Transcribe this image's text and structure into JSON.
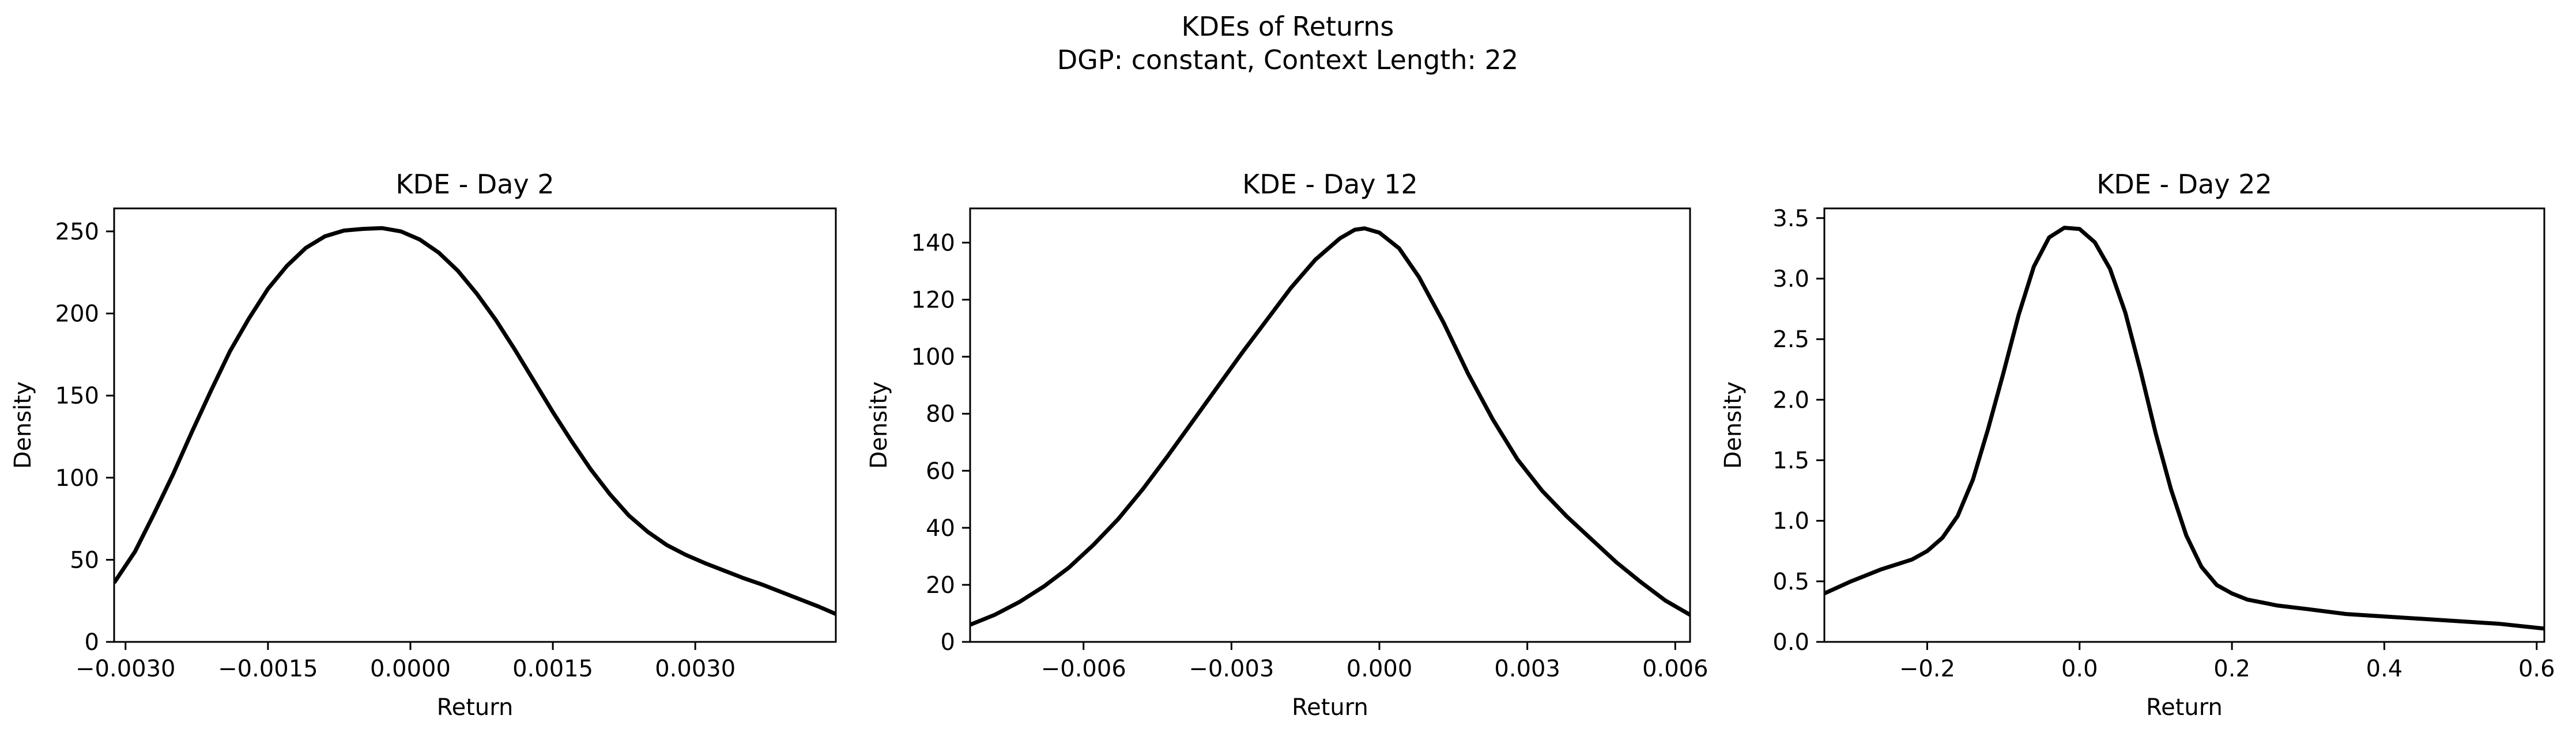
{
  "figure": {
    "suptitle_line1": "KDEs of Returns",
    "suptitle_line2": "DGP: constant, Context Length: 22",
    "line_color": "#000000"
  },
  "chart_data": [
    {
      "type": "line",
      "title": "KDE - Day 2",
      "xlabel": "Return",
      "ylabel": "Density",
      "xlim": [
        -0.00312,
        0.00448
      ],
      "ylim": [
        0,
        264
      ],
      "x_ticks": [
        -0.003,
        -0.0015,
        0.0,
        0.0015,
        0.003
      ],
      "x_tick_labels": [
        "−0.0030",
        "−0.0015",
        "0.0000",
        "0.0015",
        "0.0030"
      ],
      "y_ticks": [
        0,
        50,
        100,
        150,
        200,
        250
      ],
      "y_tick_labels": [
        "0",
        "50",
        "100",
        "150",
        "200",
        "250"
      ],
      "series": [
        {
          "x": [
            -0.00312,
            -0.0029,
            -0.0027,
            -0.0025,
            -0.0023,
            -0.0021,
            -0.0019,
            -0.0017,
            -0.0015,
            -0.0013,
            -0.0011,
            -0.0009,
            -0.0007,
            -0.0005,
            -0.0003,
            -0.0001,
            0.0001,
            0.0003,
            0.0005,
            0.0007,
            0.0009,
            0.0011,
            0.0013,
            0.0015,
            0.0017,
            0.0019,
            0.0021,
            0.0023,
            0.0025,
            0.0027,
            0.0029,
            0.0031,
            0.0033,
            0.0035,
            0.0037,
            0.0039,
            0.0041,
            0.0043,
            0.00448
          ],
          "y": [
            36,
            55,
            78,
            102,
            128,
            153,
            177,
            197,
            215,
            229,
            240,
            247,
            250.5,
            251.5,
            252,
            250,
            245,
            237,
            226,
            212,
            196,
            178,
            159,
            140,
            122,
            105,
            90,
            77,
            67,
            59,
            53,
            48,
            43.5,
            39,
            35,
            30.5,
            26,
            21.5,
            17
          ]
        }
      ]
    },
    {
      "type": "line",
      "title": "KDE - Day 12",
      "xlabel": "Return",
      "ylabel": "Density",
      "xlim": [
        -0.0083,
        0.0063
      ],
      "ylim": [
        0,
        152
      ],
      "x_ticks": [
        -0.006,
        -0.003,
        0.0,
        0.003,
        0.006
      ],
      "x_tick_labels": [
        "−0.006",
        "−0.003",
        "0.000",
        "0.003",
        "0.006"
      ],
      "y_ticks": [
        0,
        20,
        40,
        60,
        80,
        100,
        120,
        140
      ],
      "y_tick_labels": [
        "0",
        "20",
        "40",
        "60",
        "80",
        "100",
        "120",
        "140"
      ],
      "series": [
        {
          "x": [
            -0.0083,
            -0.0078,
            -0.0073,
            -0.0068,
            -0.0063,
            -0.0058,
            -0.0053,
            -0.0048,
            -0.0043,
            -0.0038,
            -0.0033,
            -0.0028,
            -0.0023,
            -0.0018,
            -0.0013,
            -0.0008,
            -0.0005,
            -0.0003,
            0.0,
            0.0004,
            0.0008,
            0.0013,
            0.0018,
            0.0023,
            0.0028,
            0.0033,
            0.0038,
            0.0043,
            0.0048,
            0.0053,
            0.0058,
            0.0063
          ],
          "y": [
            6,
            9.5,
            14,
            19.5,
            26,
            34,
            43,
            53.5,
            65,
            77,
            89,
            101,
            112.5,
            124,
            134,
            141.5,
            144.5,
            145,
            143.5,
            138,
            128,
            112,
            94,
            78,
            64,
            53,
            44,
            36,
            28,
            21,
            14.5,
            9.5
          ]
        }
      ]
    },
    {
      "type": "line",
      "title": "KDE - Day 22",
      "xlabel": "Return",
      "ylabel": "Density",
      "xlim": [
        -0.335,
        0.61
      ],
      "ylim": [
        0,
        3.58
      ],
      "x_ticks": [
        -0.2,
        0.0,
        0.2,
        0.4,
        0.6
      ],
      "x_tick_labels": [
        "−0.2",
        "0.0",
        "0.2",
        "0.4",
        "0.6"
      ],
      "y_ticks": [
        0.0,
        0.5,
        1.0,
        1.5,
        2.0,
        2.5,
        3.0,
        3.5
      ],
      "y_tick_labels": [
        "0.0",
        "0.5",
        "1.0",
        "1.5",
        "2.0",
        "2.5",
        "3.0",
        "3.5"
      ],
      "series": [
        {
          "x": [
            -0.335,
            -0.3,
            -0.26,
            -0.22,
            -0.2,
            -0.18,
            -0.16,
            -0.14,
            -0.12,
            -0.1,
            -0.08,
            -0.06,
            -0.04,
            -0.02,
            0.0,
            0.02,
            0.04,
            0.06,
            0.08,
            0.1,
            0.12,
            0.14,
            0.16,
            0.18,
            0.2,
            0.22,
            0.26,
            0.3,
            0.35,
            0.4,
            0.45,
            0.5,
            0.55,
            0.61
          ],
          "y": [
            0.4,
            0.5,
            0.6,
            0.68,
            0.75,
            0.86,
            1.04,
            1.34,
            1.76,
            2.22,
            2.7,
            3.1,
            3.34,
            3.42,
            3.41,
            3.3,
            3.08,
            2.72,
            2.24,
            1.72,
            1.26,
            0.88,
            0.62,
            0.47,
            0.4,
            0.35,
            0.3,
            0.27,
            0.23,
            0.21,
            0.19,
            0.17,
            0.15,
            0.11
          ]
        }
      ]
    }
  ]
}
